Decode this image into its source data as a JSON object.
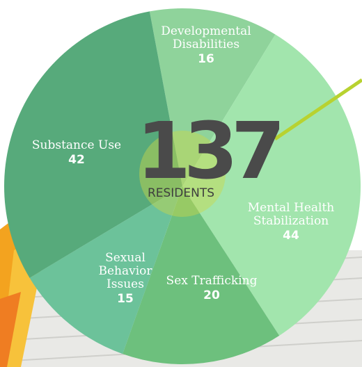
{
  "chart_data": {
    "type": "pie",
    "total": 137,
    "total_label": "RESIDENTS",
    "categories": [
      "Developmental Disabilities",
      "Mental Health Stabilization",
      "Sex Trafficking",
      "Sexual Behavior Issues",
      "Substance Use"
    ],
    "values": [
      16,
      44,
      20,
      15,
      42
    ],
    "colors": [
      "#8fd39b",
      "#a2e5ad",
      "#6dc07d",
      "#6cc29a",
      "#57aa7b"
    ]
  }
}
